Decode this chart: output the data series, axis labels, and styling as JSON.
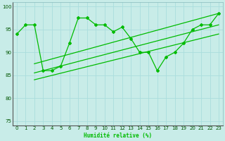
{
  "xlabel": "Humidité relative (%)",
  "bg_color": "#c8ece8",
  "grid_color": "#aadddd",
  "line_color": "#00bb00",
  "xlim": [
    -0.5,
    23.5
  ],
  "ylim": [
    74,
    101
  ],
  "yticks": [
    75,
    80,
    85,
    90,
    95,
    100
  ],
  "xticks": [
    0,
    1,
    2,
    3,
    4,
    5,
    6,
    7,
    8,
    9,
    10,
    11,
    12,
    13,
    14,
    15,
    16,
    17,
    18,
    19,
    20,
    21,
    22,
    23
  ],
  "curve_x": [
    0,
    1,
    2,
    3,
    4,
    5,
    6,
    7,
    8,
    9,
    10,
    11,
    12,
    13,
    14,
    15,
    16,
    17,
    18,
    19,
    20,
    21,
    22,
    23
  ],
  "curve_y": [
    94,
    96,
    96,
    86,
    86,
    87,
    92,
    97.5,
    97.5,
    96,
    96,
    94.5,
    95.5,
    93,
    90,
    90,
    86,
    89,
    90,
    92,
    95,
    96,
    96,
    98.5
  ],
  "line1_x": [
    2,
    23
  ],
  "line1_y": [
    84,
    94
  ],
  "line2_x": [
    2,
    23
  ],
  "line2_y": [
    85.5,
    96
  ],
  "line3_x": [
    2,
    23
  ],
  "line3_y": [
    87.5,
    98.5
  ]
}
